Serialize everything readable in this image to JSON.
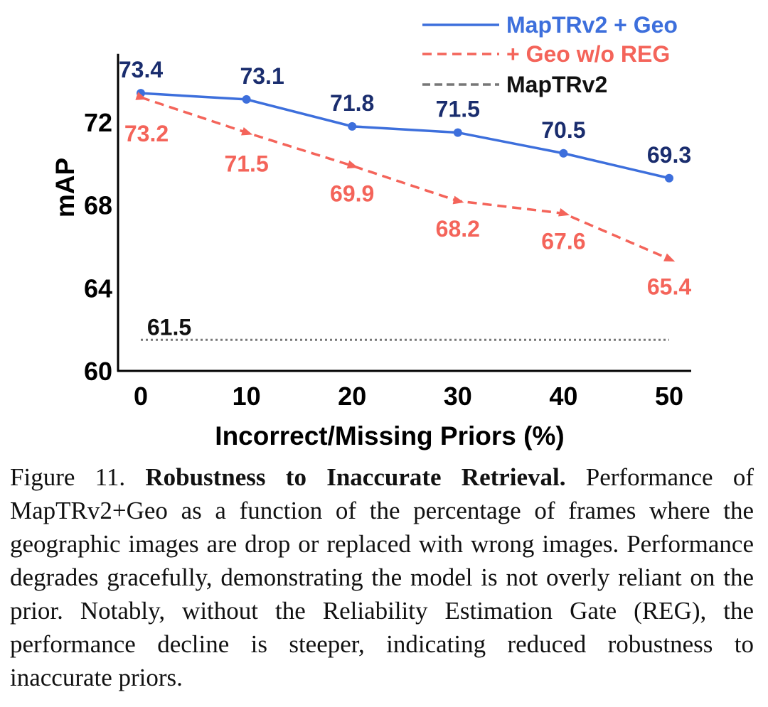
{
  "chart_data": {
    "type": "line",
    "xlabel": "Incorrect/Missing Priors (%)",
    "ylabel": "mAP",
    "x": [
      0,
      10,
      20,
      30,
      40,
      50
    ],
    "xticks": [
      "0",
      "10",
      "20",
      "30",
      "40",
      "50"
    ],
    "yticks": [
      "60",
      "64",
      "68",
      "72"
    ],
    "ylim": [
      60,
      75.3
    ],
    "series": [
      {
        "name": "MapTRv2  + Geo",
        "values": [
          73.4,
          73.1,
          71.8,
          71.5,
          70.5,
          69.3
        ],
        "labels": [
          "73.4",
          "73.1",
          "71.8",
          "71.5",
          "70.5",
          "69.3"
        ],
        "color": "#3d6fdc",
        "label_color": "#1a2d6e",
        "style": "solid",
        "marker": "circle"
      },
      {
        "name": "+ Geo w/o REG",
        "values": [
          73.2,
          71.5,
          69.9,
          68.2,
          67.6,
          65.4
        ],
        "labels": [
          "73.2",
          "71.5",
          "69.9",
          "68.2",
          "67.6",
          "65.4"
        ],
        "color": "#f4645a",
        "label_color": "#f4645a",
        "style": "dashed",
        "marker": "triangle"
      },
      {
        "name": "MapTRv2",
        "values": [
          61.5,
          61.5,
          61.5,
          61.5,
          61.5,
          61.5
        ],
        "labels": [
          "61.5"
        ],
        "color": "#777777",
        "label_color": "#111111",
        "style": "dotted",
        "marker": "none"
      }
    ],
    "legend_position": "top-right",
    "grid": false
  },
  "caption": {
    "prefix": "Figure 11. ",
    "title": "Robustness to Inaccurate Retrieval.",
    "body": " Performance of MapTRv2+Geo as a function of the percentage of frames where the geographic images are drop or replaced with wrong images. Performance degrades gracefully, demonstrating the model is not overly reliant on the prior. Notably, without the Reliability Estimation Gate (REG), the performance decline is steeper, indicating reduced robustness to inaccurate priors."
  }
}
